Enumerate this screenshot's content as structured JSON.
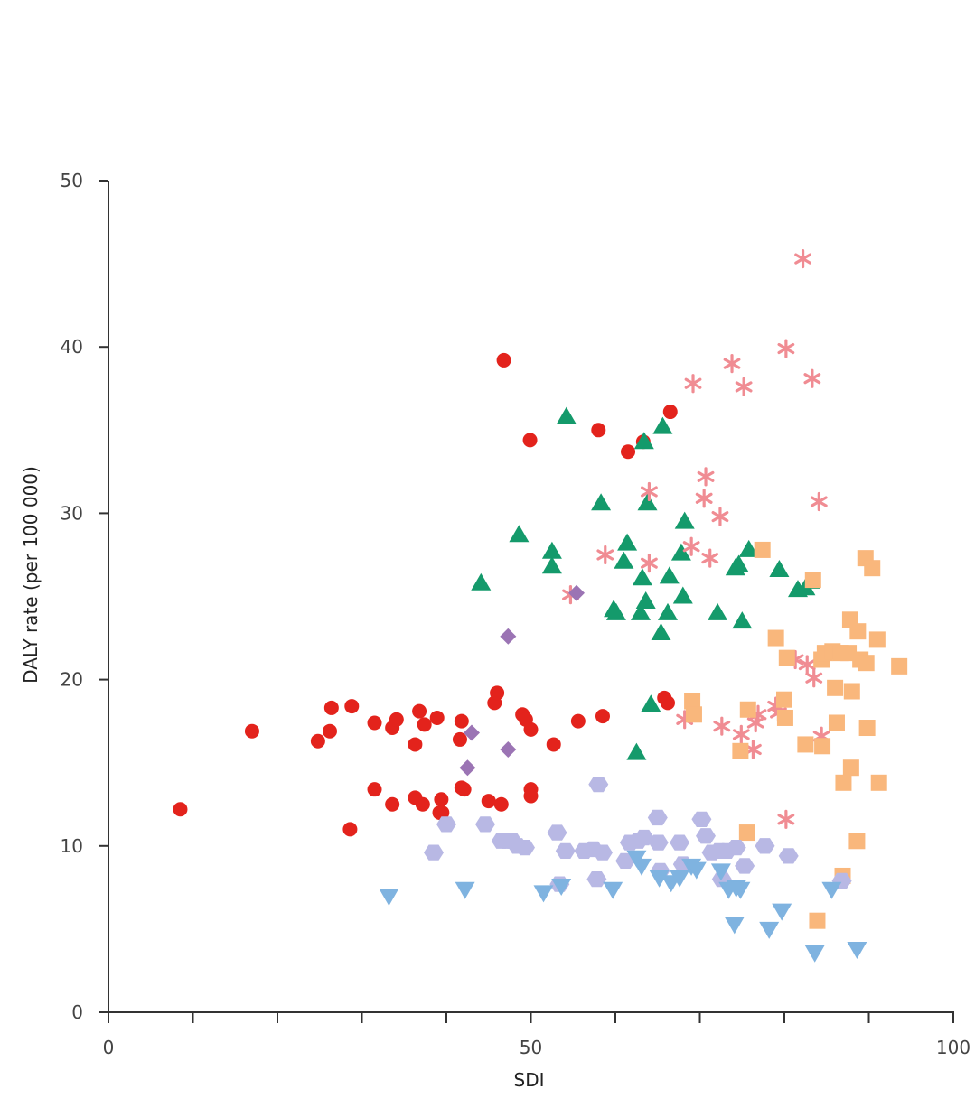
{
  "chart_data": {
    "type": "scatter",
    "title": "",
    "xlabel": "SDI",
    "ylabel": "DALY rate (per 100 000)",
    "xlim": [
      0,
      100
    ],
    "ylim": [
      0,
      50
    ],
    "xticks": [
      0,
      50,
      100
    ],
    "xticks_minor": [
      10,
      20,
      30,
      40,
      60,
      70,
      80,
      90
    ],
    "yticks": [
      0,
      10,
      20,
      30,
      40,
      50
    ],
    "grid": false,
    "legend": "none",
    "series": [
      {
        "marker": "circle",
        "color": "#e3231c",
        "points": [
          [
            8.5,
            12.2
          ],
          [
            17,
            16.9
          ],
          [
            24.8,
            16.3
          ],
          [
            26.2,
            16.9
          ],
          [
            26.4,
            18.3
          ],
          [
            28.6,
            11.0
          ],
          [
            28.8,
            18.4
          ],
          [
            31.5,
            13.4
          ],
          [
            31.5,
            17.4
          ],
          [
            33.6,
            12.5
          ],
          [
            33.6,
            17.1
          ],
          [
            34.1,
            17.6
          ],
          [
            36.3,
            12.9
          ],
          [
            36.3,
            16.1
          ],
          [
            36.8,
            18.1
          ],
          [
            37.2,
            12.5
          ],
          [
            37.4,
            17.3
          ],
          [
            38.9,
            17.7
          ],
          [
            39.2,
            12.0
          ],
          [
            39.4,
            12.8
          ],
          [
            39.5,
            12.0
          ],
          [
            41.6,
            16.4
          ],
          [
            41.8,
            13.5
          ],
          [
            41.8,
            17.5
          ],
          [
            42.1,
            13.4
          ],
          [
            45.0,
            12.7
          ],
          [
            45.7,
            18.6
          ],
          [
            46.0,
            19.2
          ],
          [
            46.5,
            12.5
          ],
          [
            46.8,
            39.2
          ],
          [
            49.0,
            17.9
          ],
          [
            49.4,
            17.6
          ],
          [
            49.9,
            34.4
          ],
          [
            50.0,
            17.0
          ],
          [
            50.0,
            13.4
          ],
          [
            50.0,
            13.0
          ],
          [
            52.7,
            16.1
          ],
          [
            55.6,
            17.5
          ],
          [
            58.0,
            35.0
          ],
          [
            58.5,
            17.8
          ],
          [
            61.5,
            33.7
          ],
          [
            63.3,
            34.3
          ],
          [
            65.8,
            18.9
          ],
          [
            66.2,
            18.6
          ],
          [
            66.5,
            36.1
          ]
        ]
      },
      {
        "marker": "triangle-up",
        "color": "#149a6b",
        "points": [
          [
            44.1,
            25.8
          ],
          [
            48.6,
            28.7
          ],
          [
            52.5,
            27.7
          ],
          [
            52.5,
            26.8
          ],
          [
            54.2,
            35.8
          ],
          [
            58.3,
            30.6
          ],
          [
            59.8,
            24.2
          ],
          [
            60.1,
            24.0
          ],
          [
            61.0,
            27.1
          ],
          [
            61.4,
            28.2
          ],
          [
            62.5,
            15.6
          ],
          [
            63.0,
            24.0
          ],
          [
            63.2,
            26.1
          ],
          [
            63.4,
            34.3
          ],
          [
            63.6,
            24.7
          ],
          [
            63.8,
            30.6
          ],
          [
            64.2,
            18.5
          ],
          [
            65.4,
            22.8
          ],
          [
            65.6,
            35.2
          ],
          [
            66.2,
            24.0
          ],
          [
            66.4,
            26.2
          ],
          [
            67.8,
            27.6
          ],
          [
            68.0,
            25.0
          ],
          [
            68.2,
            29.5
          ],
          [
            72.1,
            24.0
          ],
          [
            74.2,
            26.7
          ],
          [
            74.6,
            26.9
          ],
          [
            75.0,
            23.5
          ],
          [
            75.8,
            27.8
          ],
          [
            79.4,
            26.6
          ],
          [
            81.6,
            25.4
          ],
          [
            82.5,
            25.5
          ],
          [
            83.1,
            25.9
          ]
        ]
      },
      {
        "marker": "asterisk",
        "color": "#f08c93",
        "points": [
          [
            54.7,
            25.1
          ],
          [
            58.8,
            27.5
          ],
          [
            64.0,
            31.3
          ],
          [
            64.0,
            27.0
          ],
          [
            68.2,
            17.6
          ],
          [
            69.0,
            28.0
          ],
          [
            69.2,
            37.8
          ],
          [
            70.5,
            30.9
          ],
          [
            70.7,
            32.2
          ],
          [
            71.2,
            27.3
          ],
          [
            72.4,
            29.8
          ],
          [
            72.6,
            17.2
          ],
          [
            73.8,
            39.0
          ],
          [
            74.9,
            16.7
          ],
          [
            75.2,
            37.6
          ],
          [
            76.3,
            15.8
          ],
          [
            76.6,
            17.4
          ],
          [
            76.9,
            17.9
          ],
          [
            79.0,
            18.4
          ],
          [
            79.3,
            18.0
          ],
          [
            80.2,
            39.9
          ],
          [
            80.2,
            11.6
          ],
          [
            81.3,
            21.2
          ],
          [
            82.2,
            45.3
          ],
          [
            82.7,
            20.9
          ],
          [
            83.3,
            38.1
          ],
          [
            83.5,
            20.1
          ],
          [
            84.1,
            30.7
          ],
          [
            84.4,
            16.6
          ]
        ]
      },
      {
        "marker": "square",
        "color": "#f9b77c",
        "points": [
          [
            69.1,
            18.7
          ],
          [
            69.3,
            17.9
          ],
          [
            74.8,
            15.7
          ],
          [
            75.6,
            10.8
          ],
          [
            75.7,
            18.2
          ],
          [
            77.4,
            27.8
          ],
          [
            79.0,
            22.5
          ],
          [
            80.0,
            18.8
          ],
          [
            80.1,
            17.7
          ],
          [
            80.3,
            21.3
          ],
          [
            82.5,
            16.1
          ],
          [
            83.4,
            26.0
          ],
          [
            83.9,
            5.5
          ],
          [
            84.4,
            21.2
          ],
          [
            84.5,
            16.0
          ],
          [
            84.8,
            21.6
          ],
          [
            85.7,
            21.7
          ],
          [
            86.0,
            19.5
          ],
          [
            86.2,
            17.4
          ],
          [
            86.7,
            21.6
          ],
          [
            86.9,
            8.2
          ],
          [
            87.0,
            13.8
          ],
          [
            87.6,
            21.6
          ],
          [
            87.8,
            23.6
          ],
          [
            87.9,
            14.7
          ],
          [
            88.0,
            19.3
          ],
          [
            88.6,
            10.3
          ],
          [
            88.7,
            22.9
          ],
          [
            89.0,
            21.2
          ],
          [
            89.6,
            27.3
          ],
          [
            89.7,
            21.0
          ],
          [
            89.8,
            17.1
          ],
          [
            90.4,
            26.7
          ],
          [
            91.0,
            22.4
          ],
          [
            91.2,
            13.8
          ],
          [
            93.6,
            20.8
          ]
        ]
      },
      {
        "marker": "diamond",
        "color": "#9b74b4",
        "points": [
          [
            42.5,
            14.7
          ],
          [
            43.0,
            16.8
          ],
          [
            47.3,
            22.6
          ],
          [
            47.3,
            15.8
          ],
          [
            55.4,
            25.2
          ]
        ]
      },
      {
        "marker": "hexagon",
        "color": "#b8b8e4",
        "points": [
          [
            38.5,
            9.6
          ],
          [
            40.0,
            11.3
          ],
          [
            44.6,
            11.3
          ],
          [
            46.5,
            10.3
          ],
          [
            47.2,
            10.3
          ],
          [
            47.8,
            10.3
          ],
          [
            48.4,
            10.0
          ],
          [
            49.3,
            9.9
          ],
          [
            53.1,
            10.8
          ],
          [
            53.4,
            7.7
          ],
          [
            54.1,
            9.7
          ],
          [
            56.3,
            9.7
          ],
          [
            57.4,
            9.8
          ],
          [
            57.8,
            8.0
          ],
          [
            58.0,
            13.7
          ],
          [
            58.5,
            9.6
          ],
          [
            61.2,
            9.1
          ],
          [
            61.7,
            10.2
          ],
          [
            62.7,
            10.3
          ],
          [
            63.4,
            10.5
          ],
          [
            65.0,
            11.7
          ],
          [
            65.1,
            10.2
          ],
          [
            65.3,
            8.5
          ],
          [
            67.6,
            10.2
          ],
          [
            68.0,
            8.9
          ],
          [
            70.2,
            11.6
          ],
          [
            70.7,
            10.6
          ],
          [
            71.4,
            9.6
          ],
          [
            72.3,
            9.7
          ],
          [
            72.6,
            8.0
          ],
          [
            73.2,
            9.7
          ],
          [
            74.3,
            9.9
          ],
          [
            75.3,
            8.8
          ],
          [
            77.7,
            10.0
          ],
          [
            80.5,
            9.4
          ],
          [
            86.8,
            7.9
          ]
        ]
      },
      {
        "marker": "triangle-down",
        "color": "#7fb3e0",
        "points": [
          [
            33.2,
            7.0
          ],
          [
            42.2,
            7.4
          ],
          [
            51.5,
            7.2
          ],
          [
            53.6,
            7.6
          ],
          [
            59.7,
            7.4
          ],
          [
            62.5,
            9.3
          ],
          [
            63.1,
            8.8
          ],
          [
            65.2,
            8.1
          ],
          [
            66.6,
            7.8
          ],
          [
            67.6,
            8.1
          ],
          [
            69.0,
            8.8
          ],
          [
            69.6,
            8.6
          ],
          [
            72.5,
            8.5
          ],
          [
            73.4,
            7.4
          ],
          [
            74.1,
            5.3
          ],
          [
            74.3,
            7.5
          ],
          [
            74.8,
            7.4
          ],
          [
            78.2,
            5.0
          ],
          [
            79.7,
            6.1
          ],
          [
            83.6,
            3.6
          ],
          [
            85.6,
            7.4
          ],
          [
            88.6,
            3.8
          ]
        ]
      }
    ]
  }
}
